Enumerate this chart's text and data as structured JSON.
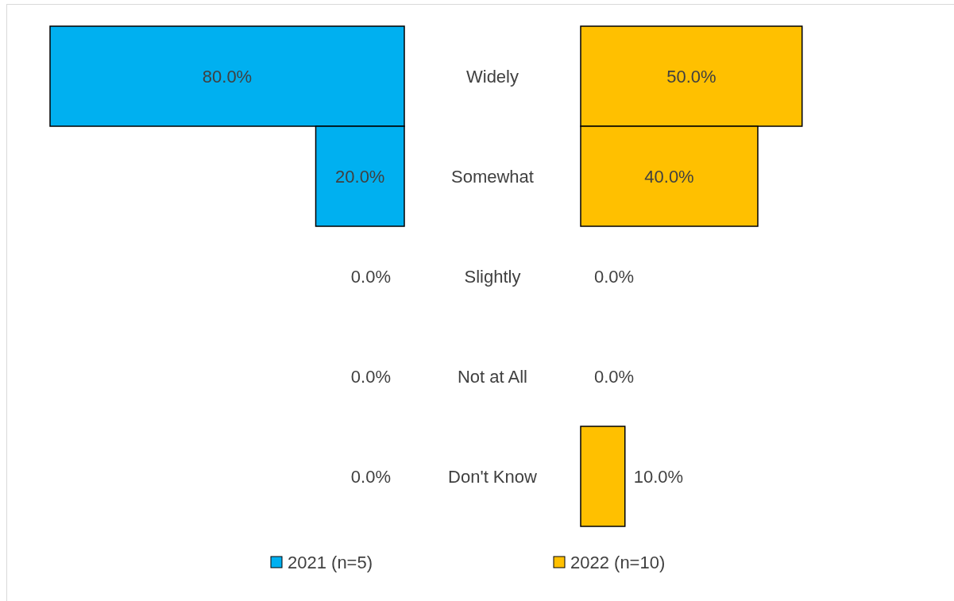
{
  "chart_data": [
    {
      "type": "bar",
      "orientation": "horizontal",
      "categories": [
        "Widely",
        "Somewhat",
        "Slightly",
        "Not at All",
        "Don't Know"
      ],
      "series": [
        {
          "name": "2021 (n=5)",
          "color": "#00b0f0",
          "values": [
            80,
            20,
            0,
            0,
            0
          ],
          "value_labels": [
            "80.0%",
            "20.0%",
            "0.0%",
            "0.0%",
            "0.0%"
          ]
        }
      ],
      "legend": "bottom"
    },
    {
      "type": "bar",
      "orientation": "horizontal",
      "series": [
        {
          "name": "2022 (n=10)",
          "color": "#ffc000",
          "values": [
            50,
            40,
            0,
            0,
            10
          ],
          "value_labels": [
            "50.0%",
            "40.0%",
            "0.0%",
            "0.0%",
            "10.0%"
          ]
        }
      ],
      "legend": "bottom"
    }
  ]
}
